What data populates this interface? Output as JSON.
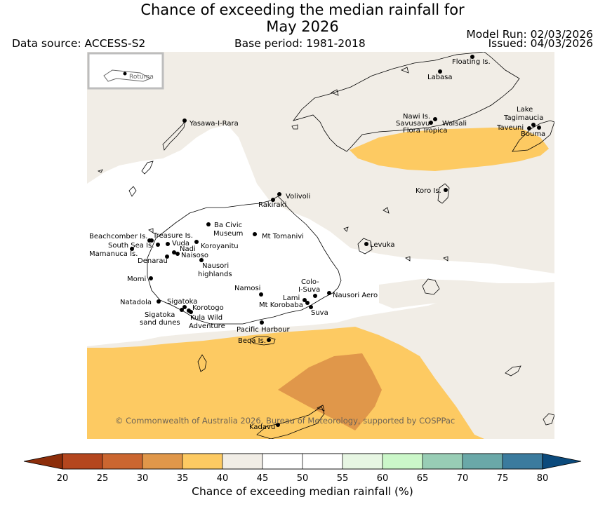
{
  "header": {
    "title_line1": "Chance of exceeding the median rainfall for",
    "title_line2": "May 2026",
    "data_source": "Data source: ACCESS-S2",
    "base_period": "Base period: 1981-2018",
    "model_run": "Model Run: 02/03/2026",
    "issued": "Issued: 04/03/2026"
  },
  "map": {
    "inset_label": "Rotuma",
    "copyright": "© Commonwealth of Australia 2026, Bureau of Meteorology, supported by COSPPac",
    "places": {
      "floating": "Floating Is.",
      "labasa": "Labasa",
      "yasawa": "Yasawa-I-Rara",
      "nawi": "Nawi Is.",
      "savusavu": "Savusavu",
      "waisali": "Waisali",
      "flora": "Flora Tropica",
      "lake1": "Lake",
      "lake2": "Tagimaucia",
      "taveuni": "Taveuni",
      "bouma": "Bouma",
      "koro": "Koro Is.",
      "volivoli": "Volivoli",
      "rakiraki": "Rakiraki",
      "levuka": "Levuka",
      "baciv1": "Ba Civic",
      "baciv2": "Museum",
      "tomanivi": "Mt Tomanivi",
      "beachcomber": "Beachcomber Is.",
      "treasure": "Treasure Is.",
      "southsea": "South Sea Is.",
      "vuda": "Vuda",
      "koroyanitu": "Koroyanitu",
      "mamanuca": "Mamanuca Is.",
      "nadi": "Nadi",
      "naisoso": "Naisoso",
      "denarau": "Denarau",
      "nausori1": "Nausori",
      "nausori2": "highlands",
      "momi": "Momi",
      "colo1": "Colo-",
      "colo2": "I-Suva",
      "namosi": "Namosi",
      "nausoriaero": "Nausori Aero",
      "lami": "Lami",
      "korobaba": "Mt Korobaba",
      "suva": "Suva",
      "natadola": "Natadola",
      "sigatoka": "Sigatoka",
      "korotogo": "Korotogo",
      "sigdunes1": "Sigatoka",
      "sigdunes2": "sand dunes",
      "kula1": "Kula Wild",
      "kula2": "Adventure",
      "pacific": "Pacific Harbour",
      "beqa": "Beqa Is.",
      "kadavu": "Kadavu"
    }
  },
  "colorbar": {
    "ticks": [
      "20",
      "25",
      "30",
      "35",
      "40",
      "45",
      "50",
      "55",
      "60",
      "65",
      "70",
      "75",
      "80"
    ],
    "low_end_color": "#8c2d0a",
    "high_end_color": "#0b4a7c",
    "colors": [
      "#b4461e",
      "#cb6630",
      "#e0974a",
      "#fdca62",
      "#f1ede6",
      "#ffffff",
      "#ffffff",
      "#e7f6e3",
      "#cbf7c9",
      "#98cdb5",
      "#6aa8a8",
      "#3b7b9e"
    ],
    "label": "Chance of exceeding median rainfall (%)"
  }
}
